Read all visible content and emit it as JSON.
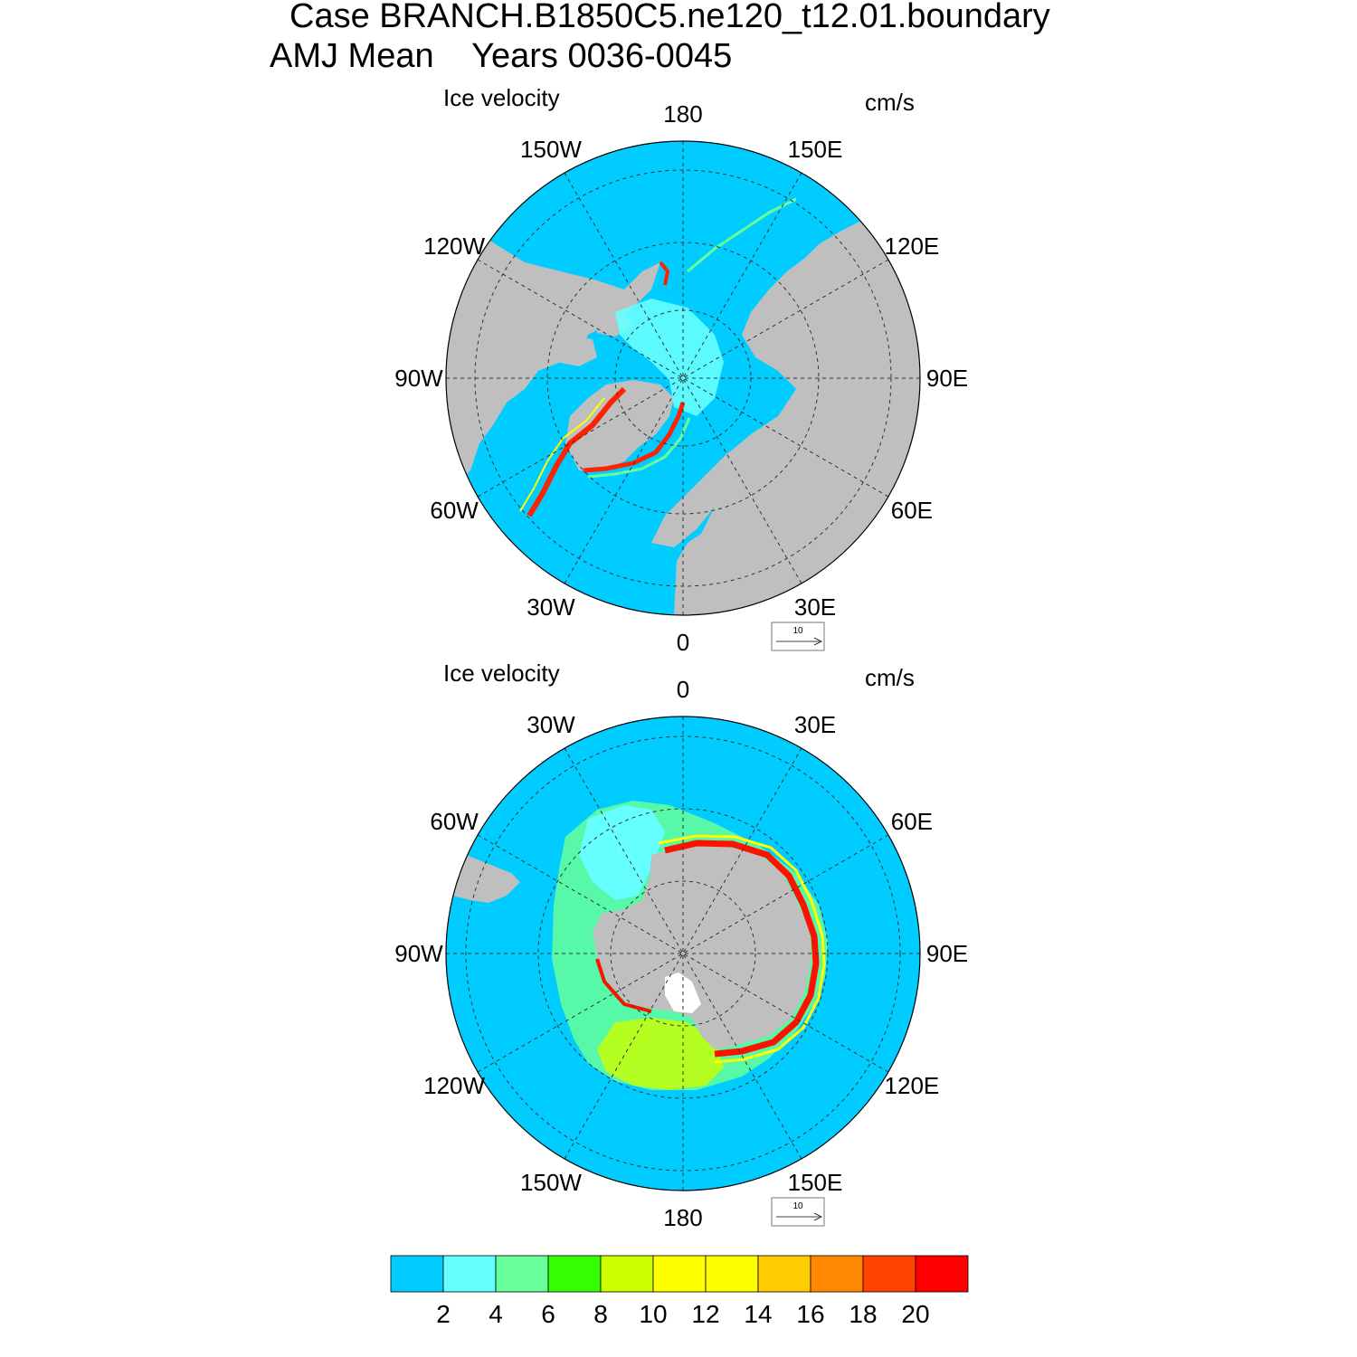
{
  "title": {
    "line1": "Case BRANCH.B1850C5.ne120_t12.01.boundary",
    "line2": "AMJ Mean    Years 0036-0045"
  },
  "panels": [
    {
      "hemisphere": "north",
      "left_label": "Ice velocity",
      "right_label": "cm/s",
      "lon_labels": [
        {
          "text": "180",
          "lon": 180
        },
        {
          "text": "150E",
          "lon": 150
        },
        {
          "text": "120E",
          "lon": 120
        },
        {
          "text": "90E",
          "lon": 90
        },
        {
          "text": "60E",
          "lon": 60
        },
        {
          "text": "30E",
          "lon": 30
        },
        {
          "text": "0",
          "lon": 0
        },
        {
          "text": "30W",
          "lon": -30
        },
        {
          "text": "60W",
          "lon": -60
        },
        {
          "text": "90W",
          "lon": -90
        },
        {
          "text": "120W",
          "lon": -120
        },
        {
          "text": "150W",
          "lon": -150
        }
      ],
      "ref_vector": "10"
    },
    {
      "hemisphere": "south",
      "left_label": "Ice velocity",
      "right_label": "cm/s",
      "lon_labels": [
        {
          "text": "0",
          "lon": 0
        },
        {
          "text": "30E",
          "lon": 30
        },
        {
          "text": "60E",
          "lon": 60
        },
        {
          "text": "90E",
          "lon": 90
        },
        {
          "text": "120E",
          "lon": 120
        },
        {
          "text": "150E",
          "lon": 150
        },
        {
          "text": "180",
          "lon": 180
        },
        {
          "text": "150W",
          "lon": -150
        },
        {
          "text": "120W",
          "lon": -120
        },
        {
          "text": "90W",
          "lon": -90
        },
        {
          "text": "60W",
          "lon": -60
        },
        {
          "text": "30W",
          "lon": -30
        }
      ],
      "ref_vector": "10"
    }
  ],
  "colorbar": {
    "colors": [
      "#00ccff",
      "#66ffff",
      "#66ff99",
      "#33ff00",
      "#ccff00",
      "#ffff00",
      "#ffff00",
      "#ffcc00",
      "#ff8800",
      "#ff4400",
      "#ff0000"
    ],
    "labels": [
      "2",
      "4",
      "6",
      "8",
      "10",
      "12",
      "14",
      "16",
      "18",
      "20"
    ]
  },
  "map_colors": {
    "ocean": "#00ccff",
    "land": "#bfbfbf",
    "ice_slow": "#66ffff",
    "ice_fast": "#ff0000"
  }
}
